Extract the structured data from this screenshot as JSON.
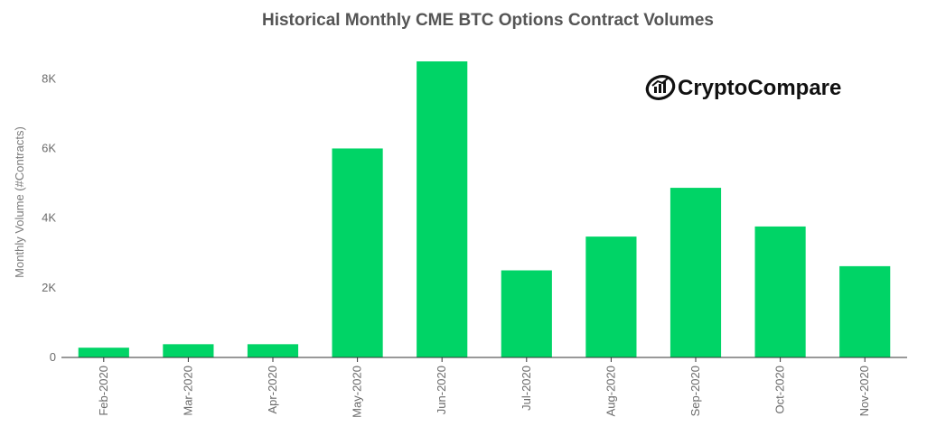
{
  "chart_data": {
    "type": "bar",
    "title": "Historical Monthly CME BTC Options Contract Volumes",
    "xlabel": "",
    "ylabel": "Monthly Volume (#Contracts)",
    "categories": [
      "Feb-2020",
      "Mar-2020",
      "Apr-2020",
      "May-2020",
      "Jun-2020",
      "Jul-2020",
      "Aug-2020",
      "Sep-2020",
      "Oct-2020",
      "Nov-2020"
    ],
    "values": [
      280,
      380,
      380,
      6000,
      8500,
      2500,
      3470,
      4870,
      3760,
      2620
    ],
    "ylim": [
      0,
      8500
    ],
    "yticks": [
      0,
      2000,
      4000,
      6000,
      8000
    ],
    "ytick_labels": [
      "0",
      "2K",
      "4K",
      "6K",
      "8K"
    ],
    "bar_color": "#00d466",
    "grid": false,
    "legend": "none"
  },
  "logo": {
    "text": "CryptoCompare",
    "icon": "cryptocompare-logo-icon"
  }
}
